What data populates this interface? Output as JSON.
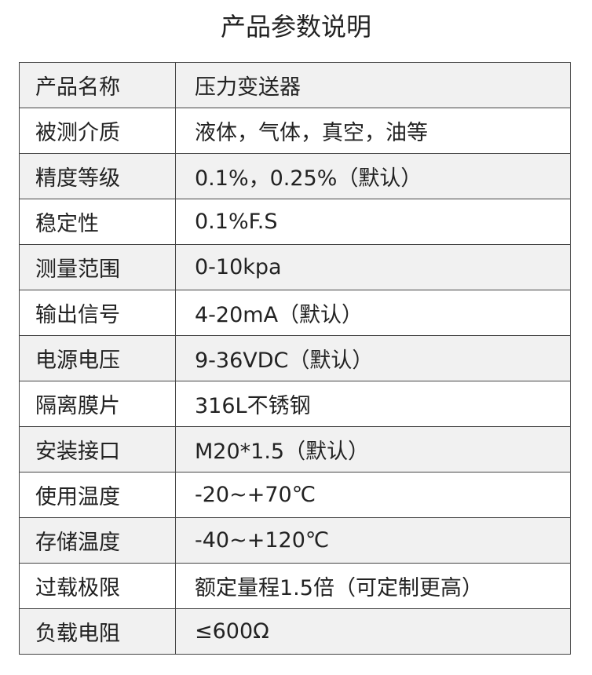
{
  "title": "产品参数说明",
  "rows": [
    {
      "label": "产品名称",
      "value": "压力变送器"
    },
    {
      "label": "被测介质",
      "value": "液体，气体，真空，油等"
    },
    {
      "label": "精度等级",
      "value": "0.1%，0.25%（默认）"
    },
    {
      "label": "稳定性",
      "value": "0.1%F.S"
    },
    {
      "label": "测量范围",
      "value": "0-10kpa"
    },
    {
      "label": "输出信号",
      "value": "4-20mA（默认）"
    },
    {
      "label": "电源电压",
      "value": "9-36VDC（默认）"
    },
    {
      "label": "隔离膜片",
      "value": "316L不锈钢"
    },
    {
      "label": "安装接口",
      "value": "M20*1.5（默认）"
    },
    {
      "label": "使用温度",
      "value": "-20~+70℃"
    },
    {
      "label": "存储温度",
      "value": "-40~+120℃"
    },
    {
      "label": "过载极限",
      "value": "额定量程1.5倍（可定制更高）"
    },
    {
      "label": "负载电阻",
      "value": "≤600Ω"
    }
  ]
}
